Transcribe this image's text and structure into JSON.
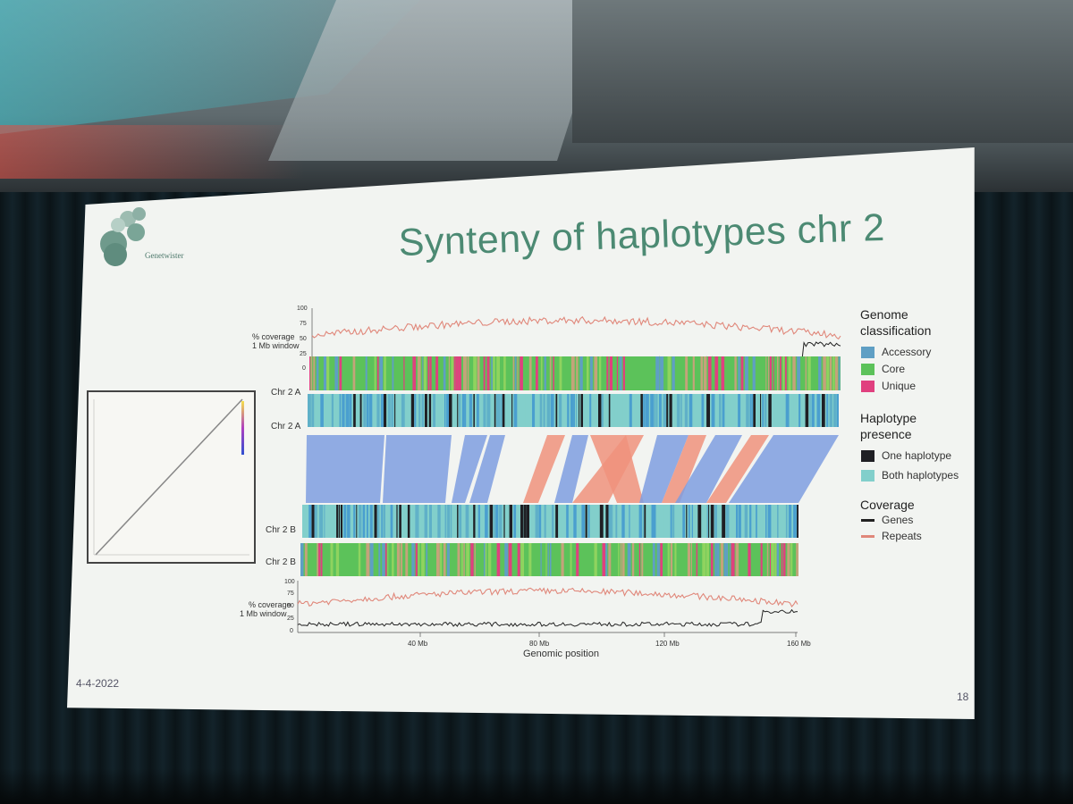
{
  "slide": {
    "logo_text": "Genetwister",
    "title": "Synteny of haplotypes chr 2",
    "date": "4-4-2022",
    "page_number": "18"
  },
  "figure": {
    "coverage_axis_label_line1": "% coverage",
    "coverage_axis_label_line2": "1 Mb window",
    "coverage_ticks": [
      "100",
      "75",
      "50",
      "25",
      "0"
    ],
    "track_labels": [
      "Chr 2 A",
      "Chr 2 A",
      "Chr 2 B",
      "Chr 2 B"
    ],
    "x_ticks": [
      "40 Mb",
      "80 Mb",
      "120 Mb",
      "160 Mb"
    ],
    "x_label": "Genomic position"
  },
  "legend": {
    "genome_classification": {
      "title_line1": "Genome",
      "title_line2": "classification",
      "items": [
        {
          "label": "Accessory",
          "color": "#5f9fc4"
        },
        {
          "label": "Core",
          "color": "#5cc25a"
        },
        {
          "label": "Unique",
          "color": "#e0407f"
        }
      ]
    },
    "haplotype_presence": {
      "title_line1": "Haplotype",
      "title_line2": "presence",
      "items": [
        {
          "label": "One haplotype",
          "color": "#1f1f24"
        },
        {
          "label": "Both haplotypes",
          "color": "#82cfcb"
        }
      ]
    },
    "coverage": {
      "title": "Coverage",
      "items": [
        {
          "label": "Genes",
          "color": "#222222"
        },
        {
          "label": "Repeats",
          "color": "#e0877a"
        }
      ]
    }
  },
  "colors": {
    "synteny_blue": "#7f9ee0",
    "synteny_salmon": "#f0927c",
    "title_green": "#4c8a73"
  }
}
